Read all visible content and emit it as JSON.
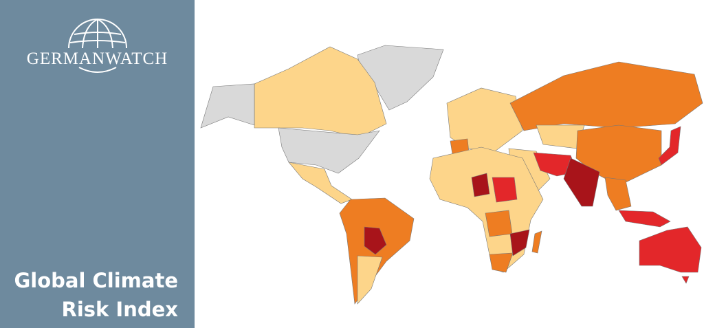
{
  "logo": {
    "text": "GERMANWATCH"
  },
  "title": {
    "lines": [
      "Global Climate",
      "Risk Index"
    ]
  }
}
